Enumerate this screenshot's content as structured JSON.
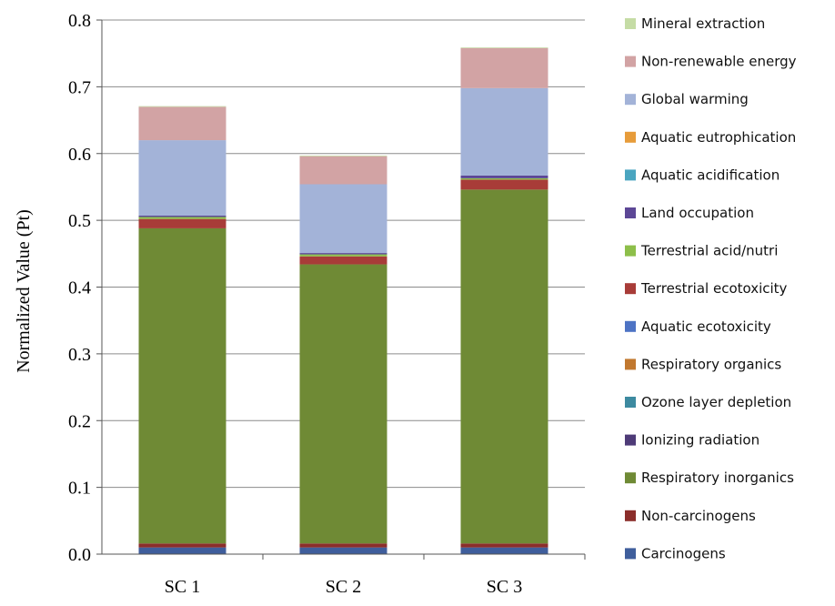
{
  "chart_data": {
    "type": "bar",
    "stacked": true,
    "ylabel": "Normalized Value (Pt)",
    "xlabel": "",
    "ylim": [
      0,
      0.8
    ],
    "yticks": [
      "0.0",
      "0.1",
      "0.2",
      "0.3",
      "0.4",
      "0.5",
      "0.6",
      "0.7",
      "0.8"
    ],
    "grid": "horizontal",
    "legend_position": "right",
    "categories": [
      "SC 1",
      "SC 2",
      "SC 3"
    ],
    "series": [
      {
        "name": "Carcinogens",
        "color": "#3f5e9c",
        "values": [
          0.01,
          0.01,
          0.01
        ]
      },
      {
        "name": "Non-carcinogens",
        "color": "#8b2e2b",
        "values": [
          0.006,
          0.006,
          0.006
        ]
      },
      {
        "name": "Respiratory inorganics",
        "color": "#6f8a35",
        "values": [
          0.472,
          0.418,
          0.53
        ]
      },
      {
        "name": "Ionizing radiation",
        "color": "#4e3b78",
        "values": [
          0.0,
          0.0,
          0.0
        ]
      },
      {
        "name": "Ozone layer depletion",
        "color": "#3d8aa0",
        "values": [
          0.0,
          0.0,
          0.0
        ]
      },
      {
        "name": "Respiratory organics",
        "color": "#c1782f",
        "values": [
          0.0,
          0.0,
          0.0
        ]
      },
      {
        "name": "Aquatic ecotoxicity",
        "color": "#4d73c4",
        "values": [
          0.0,
          0.0,
          0.0
        ]
      },
      {
        "name": "Terrestrial ecotoxicity",
        "color": "#a83c38",
        "values": [
          0.014,
          0.012,
          0.015
        ]
      },
      {
        "name": "Terrestrial acid/nutri",
        "color": "#8dbf4a",
        "values": [
          0.003,
          0.003,
          0.002
        ]
      },
      {
        "name": "Land occupation",
        "color": "#5c4796",
        "values": [
          0.002,
          0.002,
          0.004
        ]
      },
      {
        "name": "Aquatic acidification",
        "color": "#4aa5c0",
        "values": [
          0.0,
          0.0,
          0.0
        ]
      },
      {
        "name": "Aquatic eutrophication",
        "color": "#e79c3a",
        "values": [
          0.0,
          0.0,
          0.0
        ]
      },
      {
        "name": "Global warming",
        "color": "#a3b3d8",
        "values": [
          0.113,
          0.103,
          0.131
        ]
      },
      {
        "name": "Non-renewable energy",
        "color": "#d2a3a4",
        "values": [
          0.05,
          0.042,
          0.06
        ]
      },
      {
        "name": "Mineral extraction",
        "color": "#c5dca5",
        "values": [
          0.001,
          0.001,
          0.001
        ]
      }
    ]
  }
}
